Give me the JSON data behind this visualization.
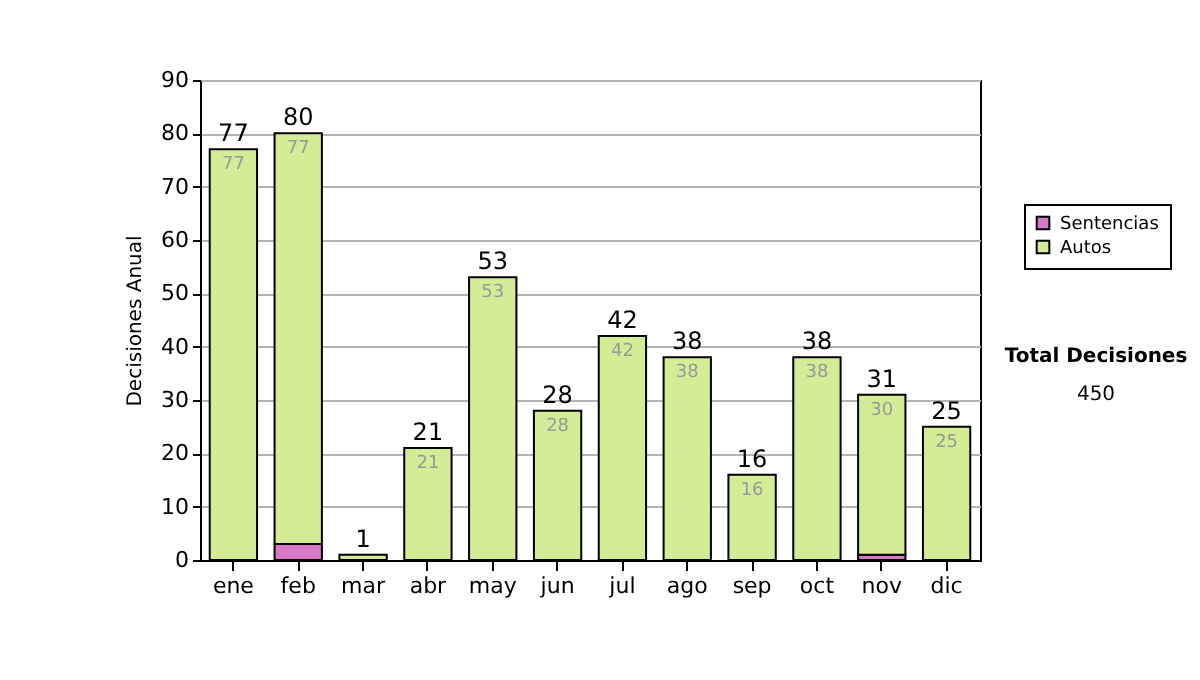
{
  "chart_data": {
    "type": "bar",
    "ylabel": "Decisiones Anual",
    "categories": [
      "ene",
      "feb",
      "mar",
      "abr",
      "may",
      "jun",
      "jul",
      "ago",
      "sep",
      "oct",
      "nov",
      "dic"
    ],
    "stacked": true,
    "series": [
      {
        "name": "Sentencias",
        "color": "#d878c8",
        "values": [
          0,
          3,
          0,
          0,
          0,
          0,
          0,
          0,
          0,
          0,
          1,
          0
        ]
      },
      {
        "name": "Autos",
        "color": "#d4ec96",
        "values": [
          77,
          77,
          1,
          21,
          53,
          28,
          42,
          38,
          16,
          38,
          30,
          25
        ],
        "value_labels": [
          "77",
          "77",
          null,
          "21",
          "53",
          "28",
          "42",
          "38",
          "16",
          "38",
          "30",
          "25"
        ]
      }
    ],
    "totals": [
      "77",
      "80",
      "1",
      "21",
      "53",
      "28",
      "42",
      "38",
      "16",
      "38",
      "31",
      "25"
    ],
    "ylim": [
      0,
      90
    ],
    "yticks": [
      0,
      10,
      20,
      30,
      40,
      50,
      60,
      70,
      80,
      90
    ],
    "grid": "y",
    "legend": "right",
    "annotations": [
      "Total Decisiones",
      "450"
    ]
  }
}
